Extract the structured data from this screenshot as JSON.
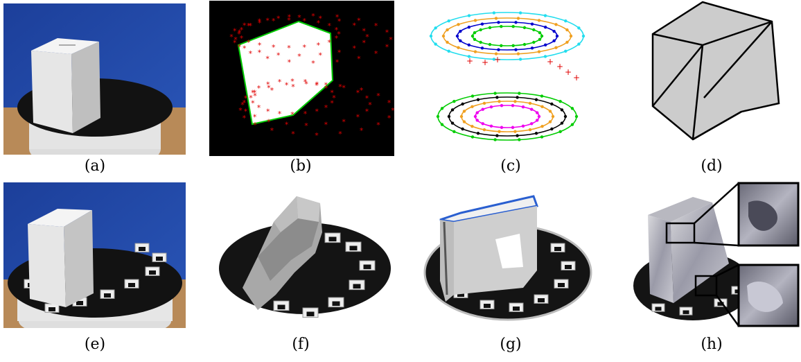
{
  "figure": {
    "captions": [
      "(a)",
      "(b)",
      "(c)",
      "(d)",
      "(e)",
      "(f)",
      "(g)",
      "(h)"
    ]
  },
  "panel_content": {
    "a": "photo of white box on black turntable (unmarked)",
    "b": "silhouette of box with red reprojected marker points",
    "c": "ellipse fits of concentric marker trajectories",
    "d": "gray convex-hull visual-hull polyhedron",
    "e": "photo of white box on turntable with fiducial markers",
    "f": "gray mesh reconstruction with markers",
    "g": "reconstruction with holes, blue edges",
    "h": "textured reconstruction with two zoom insets"
  },
  "colors": {
    "point_red": "#e00000",
    "outline_green": "#00cc00",
    "ring_cyan": "#22ddee",
    "ring_orange": "#f0a020",
    "ring_blue": "#0000cc",
    "ring_green": "#00cc00",
    "ring_black": "#000000",
    "ring_magenta": "#ee00ee",
    "hull_gray": "#cccccc"
  }
}
